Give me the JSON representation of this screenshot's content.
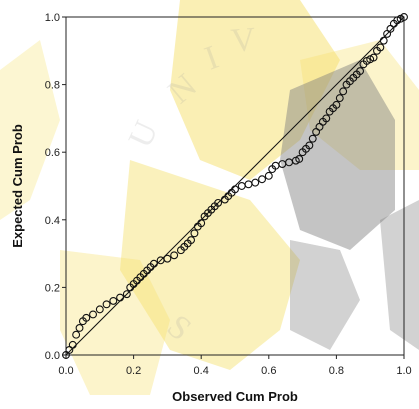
{
  "chart_data": {
    "type": "scatter",
    "title": "",
    "xlabel": "Observed Cum Prob",
    "ylabel": "Expected Cum Prob",
    "xlim": [
      0.0,
      1.0
    ],
    "ylim": [
      0.0,
      1.0
    ],
    "xticks": [
      "0.0",
      "0.2",
      "0.4",
      "0.6",
      "0.8",
      "1.0"
    ],
    "yticks": [
      "0.0",
      "0.2",
      "0.4",
      "0.6",
      "0.8",
      "1.0"
    ],
    "grid": false,
    "legend": "none",
    "reference_line": {
      "x": [
        0.0,
        1.0
      ],
      "y": [
        0.0,
        1.0
      ]
    },
    "series": [
      {
        "points": [
          [
            0.0,
            0.0
          ],
          [
            0.01,
            0.015
          ],
          [
            0.02,
            0.03
          ],
          [
            0.03,
            0.06
          ],
          [
            0.04,
            0.08
          ],
          [
            0.05,
            0.1
          ],
          [
            0.06,
            0.11
          ],
          [
            0.08,
            0.12
          ],
          [
            0.1,
            0.135
          ],
          [
            0.12,
            0.15
          ],
          [
            0.14,
            0.16
          ],
          [
            0.16,
            0.17
          ],
          [
            0.18,
            0.18
          ],
          [
            0.19,
            0.2
          ],
          [
            0.2,
            0.21
          ],
          [
            0.21,
            0.22
          ],
          [
            0.22,
            0.23
          ],
          [
            0.23,
            0.24
          ],
          [
            0.24,
            0.25
          ],
          [
            0.25,
            0.26
          ],
          [
            0.26,
            0.27
          ],
          [
            0.28,
            0.28
          ],
          [
            0.3,
            0.285
          ],
          [
            0.32,
            0.295
          ],
          [
            0.34,
            0.31
          ],
          [
            0.35,
            0.32
          ],
          [
            0.36,
            0.33
          ],
          [
            0.37,
            0.34
          ],
          [
            0.38,
            0.36
          ],
          [
            0.39,
            0.38
          ],
          [
            0.4,
            0.39
          ],
          [
            0.41,
            0.41
          ],
          [
            0.42,
            0.42
          ],
          [
            0.43,
            0.43
          ],
          [
            0.44,
            0.44
          ],
          [
            0.45,
            0.45
          ],
          [
            0.47,
            0.46
          ],
          [
            0.48,
            0.47
          ],
          [
            0.49,
            0.48
          ],
          [
            0.5,
            0.49
          ],
          [
            0.52,
            0.5
          ],
          [
            0.54,
            0.505
          ],
          [
            0.56,
            0.51
          ],
          [
            0.58,
            0.52
          ],
          [
            0.6,
            0.53
          ],
          [
            0.61,
            0.55
          ],
          [
            0.62,
            0.56
          ],
          [
            0.64,
            0.565
          ],
          [
            0.66,
            0.57
          ],
          [
            0.68,
            0.575
          ],
          [
            0.69,
            0.58
          ],
          [
            0.7,
            0.6
          ],
          [
            0.71,
            0.61
          ],
          [
            0.72,
            0.62
          ],
          [
            0.73,
            0.64
          ],
          [
            0.74,
            0.66
          ],
          [
            0.75,
            0.675
          ],
          [
            0.76,
            0.69
          ],
          [
            0.77,
            0.7
          ],
          [
            0.78,
            0.72
          ],
          [
            0.79,
            0.73
          ],
          [
            0.8,
            0.74
          ],
          [
            0.81,
            0.76
          ],
          [
            0.82,
            0.78
          ],
          [
            0.83,
            0.8
          ],
          [
            0.84,
            0.81
          ],
          [
            0.85,
            0.82
          ],
          [
            0.86,
            0.83
          ],
          [
            0.87,
            0.84
          ],
          [
            0.88,
            0.86
          ],
          [
            0.89,
            0.87
          ],
          [
            0.9,
            0.875
          ],
          [
            0.91,
            0.88
          ],
          [
            0.92,
            0.9
          ],
          [
            0.93,
            0.91
          ],
          [
            0.94,
            0.93
          ],
          [
            0.95,
            0.95
          ],
          [
            0.96,
            0.965
          ],
          [
            0.97,
            0.98
          ],
          [
            0.98,
            0.99
          ],
          [
            0.99,
            0.995
          ],
          [
            1.0,
            1.0
          ]
        ]
      }
    ]
  },
  "colors": {
    "background": "#ffffff",
    "plot_bg": "#ffffff",
    "marker_stroke": "#111111",
    "line": "#111111",
    "watermark_gold": "#f5e06a",
    "watermark_gray": "#9a9a9a"
  }
}
